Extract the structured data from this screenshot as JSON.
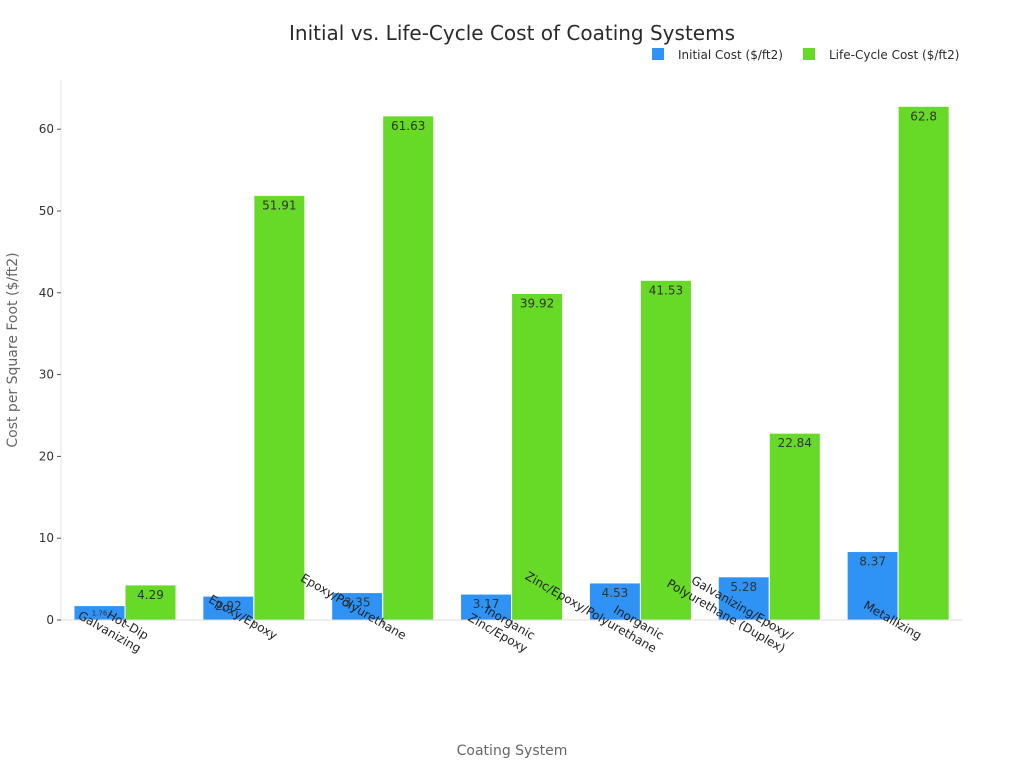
{
  "chart_data": {
    "type": "bar",
    "title": "Initial vs. Life-Cycle Cost of Coating Systems",
    "xlabel": "Coating System",
    "ylabel": "Cost per Square Foot ($/ft2)",
    "ylim": [
      0,
      66
    ],
    "yticks": [
      0,
      10,
      20,
      30,
      40,
      50,
      60
    ],
    "legend_position": "top-right",
    "categories": [
      [
        "Hot-Dip",
        "Galvanizing"
      ],
      [
        "Epoxy/Epoxy"
      ],
      [
        "Epoxy/Polyurethane"
      ],
      [
        "Inorganic",
        "Zinc/Epoxy"
      ],
      [
        "Inorganic",
        "Zinc/Epoxy/Polyurethane"
      ],
      [
        "Galvanizing/Epoxy/",
        "Polyurethane (Duplex)"
      ],
      [
        "Metallizing"
      ]
    ],
    "series": [
      {
        "name": "Initial Cost ($/ft2)",
        "color": "#2e93f5",
        "values": [
          1.76,
          2.92,
          3.35,
          3.17,
          4.53,
          5.28,
          8.37
        ],
        "labels": [
          "1.76",
          "2.92",
          "3.35",
          "3.17",
          "4.53",
          "5.28",
          "8.37"
        ]
      },
      {
        "name": "Life-Cycle Cost ($/ft2)",
        "color": "#66da26",
        "values": [
          4.29,
          51.91,
          61.63,
          39.92,
          41.53,
          22.84,
          62.8
        ],
        "labels": [
          "4.29",
          "51.91",
          "61.63",
          "39.92",
          "41.53",
          "22.84",
          "62.8"
        ]
      }
    ]
  }
}
